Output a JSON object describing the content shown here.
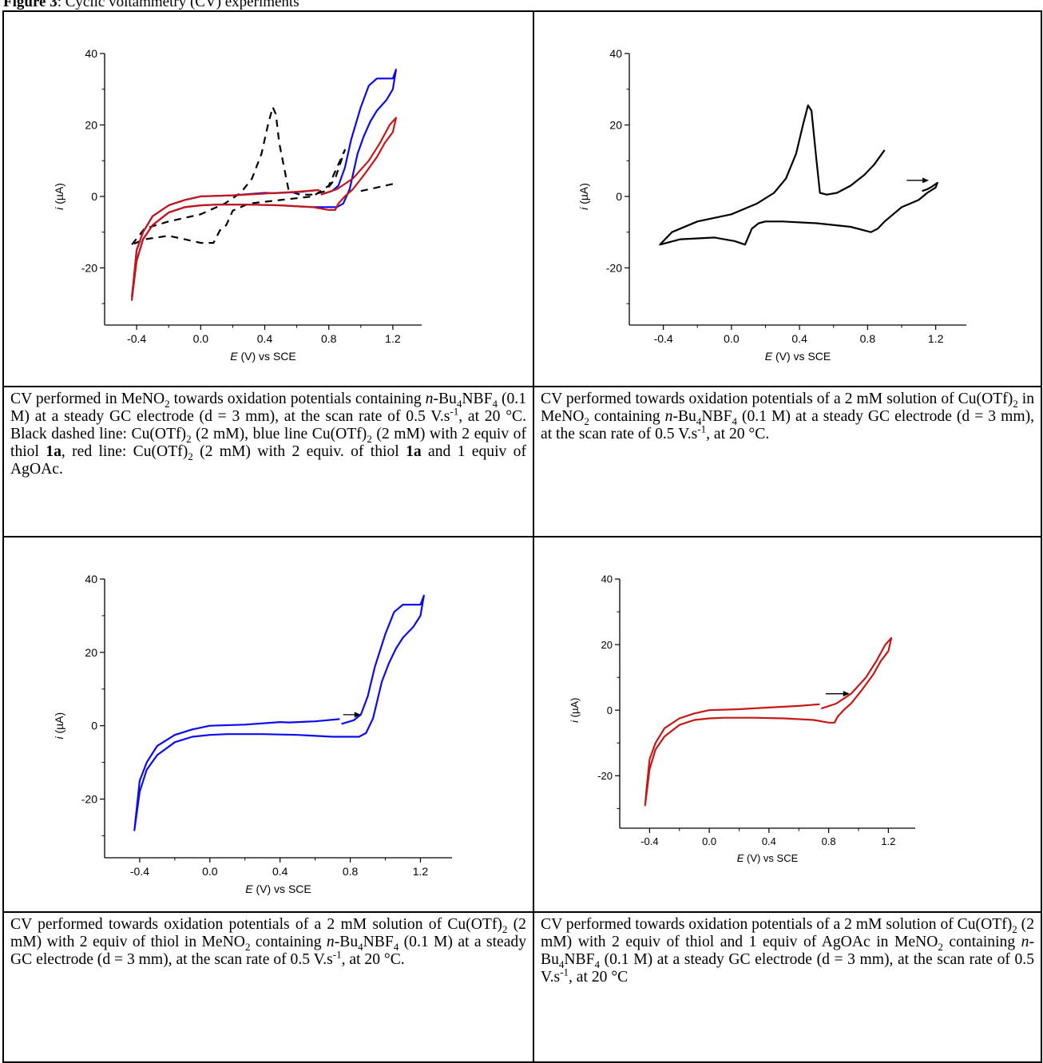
{
  "figure": {
    "label": "Figure 3",
    "title_rest": ": Cyclic voltammetry (CV) experiments"
  },
  "colors": {
    "black": "#000000",
    "blue": "#0a0af0",
    "red": "#c81616"
  },
  "captions": {
    "p1": {
      "a": "CV performed in MeNO",
      "a_sub": "2",
      "b": " towards oxidation potentials containing ",
      "c_it": "n",
      "d": "-Bu",
      "d_sub": "4",
      "e": "NBF",
      "e_sub": "4",
      "f": " (0.1 M) at a steady GC electrode (d = 3 mm), at the scan rate of 0.5 V.s",
      "f_sup": "-1",
      "g": ", at 20 °C. Black dashed line: Cu(OTf)",
      "g_sub": "2",
      "h": " (2 mM), blue line Cu(OTf)",
      "h_sub": "2",
      "i": " (2 mM) with 2 equiv of thiol ",
      "i_b": "1a",
      "j": ", red line: Cu(OTf)",
      "j_sub": "2",
      "k": " (2 mM) with 2 equiv. of thiol ",
      "k_b": "1a",
      "l": " and 1 equiv of AgOAc."
    },
    "p2": {
      "a": "CV performed towards oxidation potentials of a 2 mM solution of Cu(OTf)",
      "a_sub": "2",
      "b": " in MeNO",
      "b_sub": "2",
      "c": " containing ",
      "c_it": "n",
      "d": "-Bu",
      "d_sub": "4",
      "e": "NBF",
      "e_sub": "4",
      "f": " (0.1 M) at a steady GC electrode (d = 3 mm), at the scan rate of 0.5 V.s",
      "f_sup": "-1",
      "g": ", at 20 °C."
    },
    "p3": {
      "a": "CV performed towards oxidation potentials of a 2 mM solution of Cu(OTf)",
      "a_sub": "2",
      "b": " (2 mM) with 2 equiv of thiol in MeNO",
      "b_sub": "2",
      "c": " containing ",
      "c_it": "n",
      "d": "-Bu",
      "d_sub": "4",
      "e": "NBF",
      "e_sub": "4",
      "f": " (0.1 M) at a steady GC electrode (d = 3 mm), at the scan rate of 0.5 V.s",
      "f_sup": "-1",
      "g": ", at 20 °C."
    },
    "p4": {
      "a": "CV performed towards oxidation potentials of a 2 mM solution of Cu(OTf)",
      "a_sub": "2",
      "b": " (2 mM) with 2 equiv of thiol and 1 equiv of AgOAc in MeNO",
      "b_sub": "2",
      "c": " containing ",
      "c_it": "n",
      "d": "-Bu",
      "d_sub": "4",
      "e": "NBF",
      "e_sub": "4",
      "f": " (0.1 M) at a steady GC electrode (d = 3 mm), at the scan rate of 0.5 V.s",
      "f_sup": "-1",
      "g": ", at 20 °C"
    }
  },
  "chart_data": [
    {
      "type": "line",
      "panel": "top-left",
      "xlabel_italic": "E",
      "xlabel_rest": " (V) vs SCE",
      "ylabel_italic": "i",
      "ylabel_rest": " (µA)",
      "xlim": [
        -0.6,
        1.38
      ],
      "ylim": [
        -36,
        40
      ],
      "xticks": [
        -0.4,
        0.0,
        0.4,
        0.8,
        1.2
      ],
      "xtick_labels": [
        "-0.4",
        "0.0",
        "0.4",
        "0.8",
        "1.2"
      ],
      "yticks": [
        -20,
        0,
        20,
        40
      ],
      "ytick_labels": [
        "-20",
        "0",
        "20",
        "40"
      ],
      "grid": false,
      "arrow": null,
      "series": [
        {
          "color": "black",
          "dashed": true,
          "x": [
            -0.43,
            -0.35,
            -0.2,
            0.0,
            0.15,
            0.25,
            0.32,
            0.38,
            0.42,
            0.45,
            0.47,
            0.49,
            0.55,
            0.62,
            0.7,
            0.78,
            0.84,
            0.9,
            0.9,
            0.85,
            0.8,
            0.7,
            0.5,
            0.3,
            0.2,
            0.16,
            0.12,
            0.08,
            0.0,
            -0.2,
            -0.35,
            -0.43
          ],
          "y": [
            -13.5,
            -9,
            -7,
            -5,
            -2,
            1,
            5,
            12,
            20,
            25,
            23,
            15,
            1.5,
            0.5,
            0.5,
            1.5,
            5,
            13,
            13,
            8,
            3,
            0,
            -1,
            -2,
            -4,
            -8,
            -9.5,
            -13,
            -13,
            -11,
            -12,
            -13.5
          ]
        },
        {
          "color": "black",
          "dashed": true,
          "x": [
            1.0,
            1.05,
            1.1,
            1.2
          ],
          "y": [
            1.5,
            2,
            2.5,
            3.5
          ]
        },
        {
          "color": "blue",
          "dashed": false,
          "x": [
            0.75,
            0.82,
            0.86,
            0.9,
            0.94,
            1.0,
            1.05,
            1.1,
            1.15,
            1.2,
            1.22,
            1.2,
            1.16,
            1.1,
            1.06,
            1.02,
            0.98,
            0.95,
            0.93,
            0.91,
            0.89,
            0.85,
            0.8,
            0.7,
            0.5,
            0.3,
            0.1,
            0.0,
            -0.1,
            -0.2,
            -0.3,
            -0.36,
            -0.4,
            -0.43,
            -0.43,
            -0.42,
            -0.4,
            -0.36,
            -0.3,
            -0.2,
            -0.1,
            0.0,
            0.2,
            0.4,
            0.45,
            0.6,
            0.74
          ],
          "y": [
            0.5,
            1.5,
            3,
            8,
            16,
            25,
            31,
            33,
            33,
            33,
            35.5,
            30,
            27,
            24,
            21,
            17,
            12,
            6,
            2,
            0,
            -2,
            -3,
            -3,
            -3,
            -2.5,
            -2.3,
            -2.3,
            -2.5,
            -3,
            -4.5,
            -8,
            -12,
            -18,
            -28,
            -28,
            -24,
            -15,
            -10,
            -5.5,
            -2.5,
            -1,
            0,
            0.3,
            1,
            0.9,
            1.2,
            1.8
          ]
        },
        {
          "color": "red",
          "dashed": false,
          "x": [
            0.75,
            0.85,
            0.95,
            1.05,
            1.12,
            1.18,
            1.22,
            1.2,
            1.15,
            1.1,
            1.02,
            0.95,
            0.9,
            0.86,
            0.84,
            0.8,
            0.7,
            0.5,
            0.3,
            0.1,
            0.0,
            -0.1,
            -0.2,
            -0.3,
            -0.36,
            -0.4,
            -0.43,
            -0.43,
            -0.42,
            -0.4,
            -0.36,
            -0.3,
            -0.2,
            -0.1,
            0.0,
            0.2,
            0.4,
            0.6,
            0.74
          ],
          "y": [
            0.5,
            2,
            5,
            10,
            15,
            20,
            22,
            18,
            15,
            11,
            6,
            2,
            0,
            -2,
            -3.8,
            -3.8,
            -3,
            -2.5,
            -2.3,
            -2.3,
            -2.5,
            -3,
            -4.5,
            -8,
            -12,
            -18,
            -29,
            -29,
            -24,
            -15,
            -10,
            -5.5,
            -2.5,
            -1,
            0,
            0.3,
            0.8,
            1.3,
            1.8
          ]
        }
      ]
    },
    {
      "type": "line",
      "panel": "top-right",
      "xlabel_italic": "E",
      "xlabel_rest": " (V) vs SCE",
      "ylabel_italic": "i",
      "ylabel_rest": " (µA)",
      "xlim": [
        -0.6,
        1.38
      ],
      "ylim": [
        -36,
        40
      ],
      "xticks": [
        -0.4,
        0.0,
        0.4,
        0.8,
        1.2
      ],
      "xtick_labels": [
        "-0.4",
        "0.0",
        "0.4",
        "0.8",
        "1.2"
      ],
      "yticks": [
        -20,
        0,
        20,
        40
      ],
      "ytick_labels": [
        "-20",
        "0",
        "20",
        "40"
      ],
      "grid": false,
      "arrow": {
        "x1": 1.03,
        "x2": 1.16,
        "y": 4.5
      },
      "series": [
        {
          "color": "black",
          "dashed": false,
          "x": [
            1.12,
            1.15,
            1.18,
            1.21,
            1.2,
            1.15,
            1.1,
            1.05,
            1.0,
            0.95,
            0.9,
            0.86,
            0.82,
            0.78,
            0.7,
            0.5,
            0.3,
            0.2,
            0.16,
            0.12,
            0.08,
            0.02,
            -0.1,
            -0.3,
            -0.42,
            -0.35,
            -0.2,
            0.0,
            0.15,
            0.25,
            0.32,
            0.38,
            0.42,
            0.45,
            0.47,
            0.5,
            0.52,
            0.56,
            0.62,
            0.7,
            0.78,
            0.84,
            0.9
          ],
          "y": [
            1.5,
            2,
            2.8,
            3.8,
            2.5,
            1,
            -1,
            -2,
            -3,
            -5,
            -7,
            -9,
            -10,
            -9.5,
            -8.5,
            -7.5,
            -7,
            -7,
            -7.5,
            -9,
            -13.5,
            -12.5,
            -11.5,
            -12,
            -13.5,
            -10,
            -7,
            -5,
            -2,
            1,
            5,
            12,
            20,
            25.5,
            24,
            10,
            1,
            0.5,
            1,
            3,
            6,
            9,
            13
          ]
        }
      ]
    },
    {
      "type": "line",
      "panel": "bottom-left",
      "xlabel_italic": "E",
      "xlabel_rest": " (V) vs SCE",
      "ylabel_italic": "i",
      "ylabel_rest": " (µA)",
      "xlim": [
        -0.6,
        1.38
      ],
      "ylim": [
        -36,
        40
      ],
      "xticks": [
        -0.4,
        0.0,
        0.4,
        0.8,
        1.2
      ],
      "xtick_labels": [
        "-0.4",
        "0.0",
        "0.4",
        "0.8",
        "1.2"
      ],
      "yticks": [
        -20,
        0,
        20,
        40
      ],
      "ytick_labels": [
        "-20",
        "0",
        "20",
        "40"
      ],
      "grid": false,
      "arrow": {
        "x1": 0.76,
        "x2": 0.86,
        "y": 3
      },
      "series": [
        {
          "color": "blue",
          "dashed": false,
          "x": [
            0.75,
            0.82,
            0.86,
            0.9,
            0.94,
            1.0,
            1.05,
            1.1,
            1.15,
            1.2,
            1.22,
            1.2,
            1.16,
            1.1,
            1.06,
            1.02,
            0.98,
            0.95,
            0.93,
            0.91,
            0.89,
            0.85,
            0.8,
            0.7,
            0.5,
            0.3,
            0.1,
            0.0,
            -0.1,
            -0.2,
            -0.3,
            -0.36,
            -0.4,
            -0.43,
            -0.43,
            -0.42,
            -0.4,
            -0.36,
            -0.3,
            -0.2,
            -0.1,
            0.0,
            0.2,
            0.4,
            0.45,
            0.6,
            0.74
          ],
          "y": [
            0.5,
            1.5,
            3,
            8,
            16,
            25,
            31,
            33,
            33,
            33,
            35.5,
            30,
            27,
            24,
            21,
            17,
            12,
            6,
            2,
            0,
            -2,
            -3,
            -3,
            -3,
            -2.5,
            -2.3,
            -2.3,
            -2.5,
            -3,
            -4.5,
            -8,
            -12,
            -18,
            -28.5,
            -28.5,
            -24,
            -15,
            -10,
            -5.5,
            -2.5,
            -1,
            0,
            0.3,
            1,
            0.9,
            1.2,
            1.8
          ]
        }
      ]
    },
    {
      "type": "line",
      "panel": "bottom-right",
      "xlabel_italic": "E",
      "xlabel_rest": " (V) vs SCE",
      "ylabel_italic": "i",
      "ylabel_rest": " (µA)",
      "xlim": [
        -0.6,
        1.38
      ],
      "ylim": [
        -36,
        40
      ],
      "xticks": [
        -0.4,
        0.0,
        0.4,
        0.8,
        1.2
      ],
      "xtick_labels": [
        "-0.4",
        "0.0",
        "0.4",
        "0.8",
        "1.2"
      ],
      "yticks": [
        -20,
        0,
        20,
        40
      ],
      "ytick_labels": [
        "-20",
        "0",
        "20",
        "40"
      ],
      "grid": false,
      "arrow": {
        "x1": 0.78,
        "x2": 0.94,
        "y": 5
      },
      "series": [
        {
          "color": "red",
          "dashed": false,
          "x": [
            0.75,
            0.85,
            0.95,
            1.05,
            1.12,
            1.18,
            1.22,
            1.2,
            1.15,
            1.1,
            1.02,
            0.95,
            0.9,
            0.86,
            0.84,
            0.8,
            0.7,
            0.5,
            0.3,
            0.1,
            0.0,
            -0.1,
            -0.2,
            -0.3,
            -0.36,
            -0.4,
            -0.43,
            -0.43,
            -0.42,
            -0.4,
            -0.36,
            -0.3,
            -0.2,
            -0.1,
            0.0,
            0.2,
            0.4,
            0.6,
            0.74
          ],
          "y": [
            0.5,
            2,
            5,
            10,
            15,
            20,
            22,
            18,
            15,
            11,
            6,
            2,
            0,
            -2,
            -3.8,
            -3.8,
            -3,
            -2.5,
            -2.3,
            -2.3,
            -2.5,
            -3,
            -4.5,
            -8,
            -12,
            -18,
            -29,
            -29,
            -24,
            -15,
            -10,
            -5.5,
            -2.5,
            -1,
            0,
            0.3,
            0.8,
            1.3,
            1.8
          ]
        }
      ]
    }
  ]
}
